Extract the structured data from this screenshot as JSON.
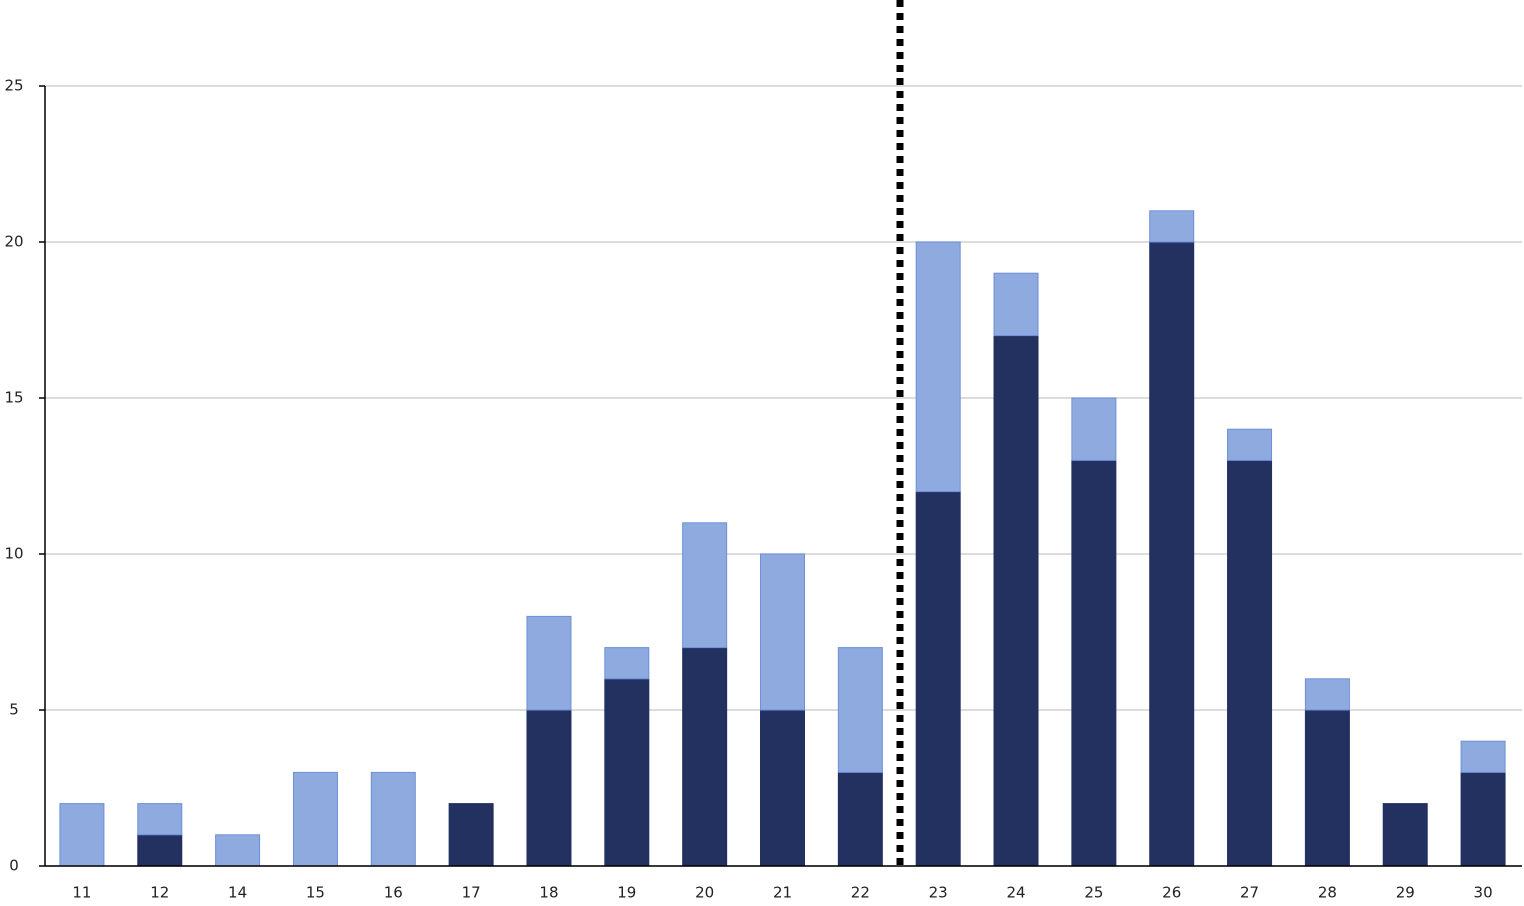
{
  "chart_data": {
    "type": "stacked-bar",
    "categories": [
      "11",
      "12",
      "14",
      "15",
      "16",
      "17",
      "18",
      "19",
      "20",
      "21",
      "22",
      "23",
      "24",
      "25",
      "26",
      "27",
      "28",
      "29",
      "30"
    ],
    "series": [
      {
        "color": "#22315f",
        "values": [
          0,
          1,
          0,
          0,
          0,
          2,
          5,
          6,
          7,
          5,
          3,
          12,
          17,
          13,
          20,
          13,
          5,
          2,
          3
        ]
      },
      {
        "color": "#8eaadf",
        "values": [
          2,
          1,
          1,
          3,
          3,
          0,
          3,
          1,
          4,
          5,
          4,
          8,
          2,
          2,
          1,
          1,
          1,
          0,
          1
        ]
      }
    ],
    "ylim": [
      0,
      25
    ],
    "yticks": [
      0,
      5,
      10,
      15,
      20,
      25
    ],
    "grid": true
  }
}
